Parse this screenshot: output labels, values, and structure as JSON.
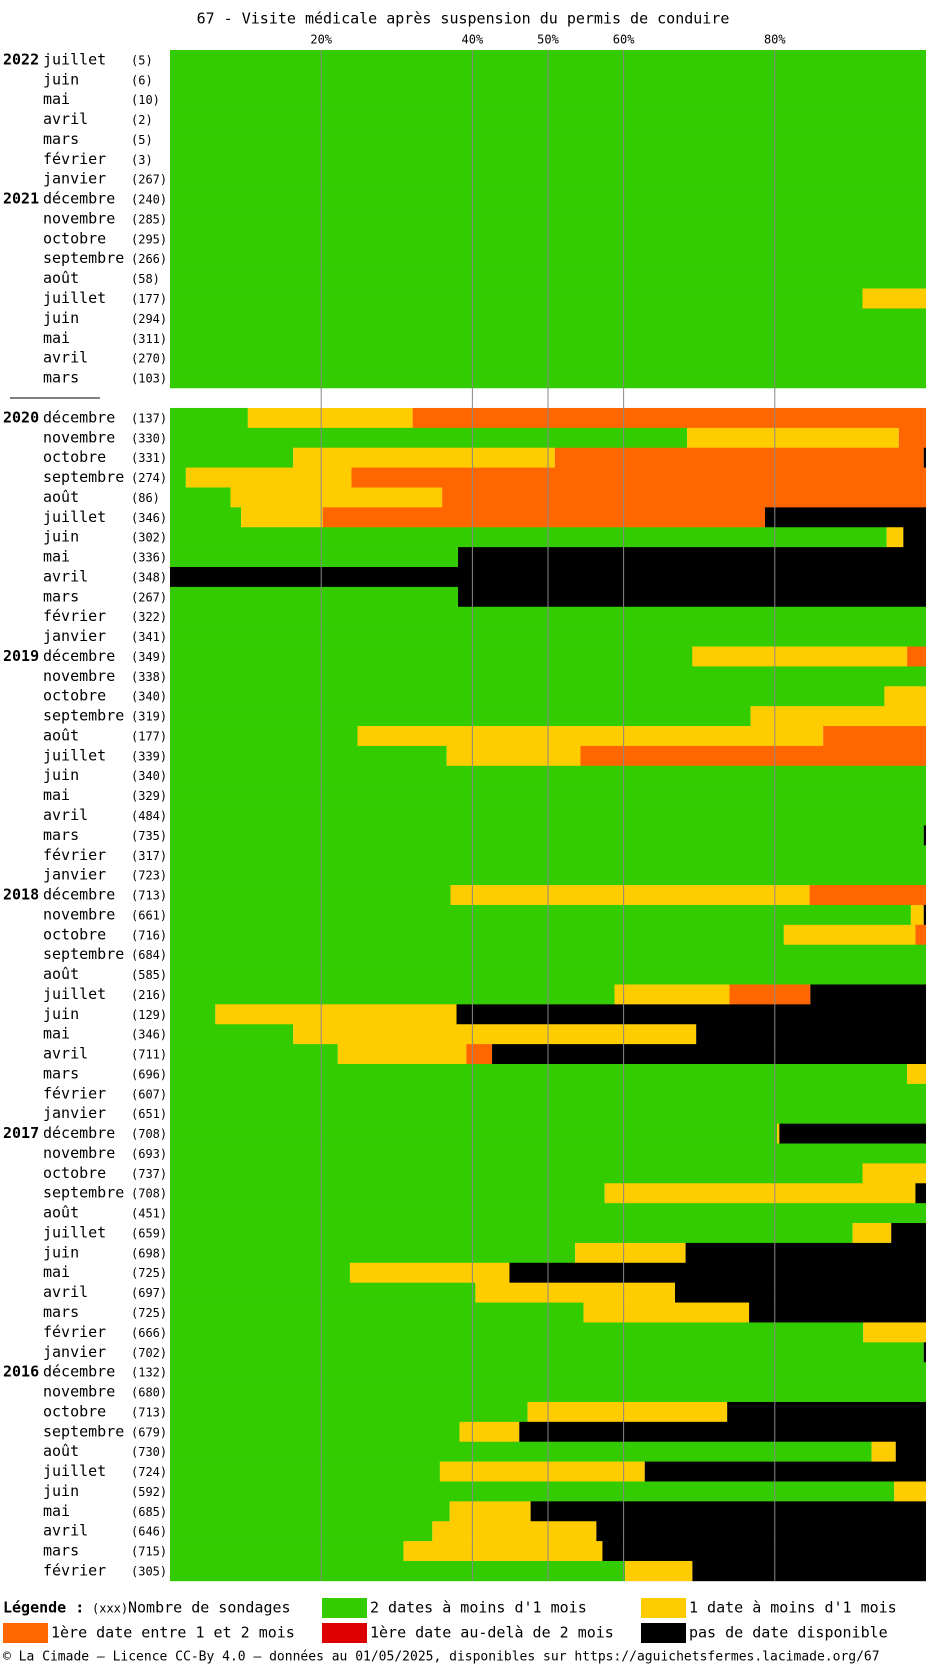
{
  "chart_data": {
    "type": "stacked-barh",
    "title": "67 - Visite médicale après suspension du permis de conduire",
    "xlim": [
      0,
      100
    ],
    "xticks": [
      {
        "value": 20,
        "label": "20%"
      },
      {
        "value": 40,
        "label": "40%"
      },
      {
        "value": 50,
        "label": "50%"
      },
      {
        "value": 60,
        "label": "60%"
      },
      {
        "value": 80,
        "label": "80%"
      }
    ],
    "grid": true,
    "years": [
      "2022",
      null,
      null,
      null,
      null,
      null,
      null,
      "2021",
      null,
      null,
      null,
      null,
      null,
      null,
      null,
      null,
      null,
      "2020",
      null,
      null,
      null,
      null,
      null,
      null,
      null,
      null,
      null,
      null,
      null,
      "2019",
      null,
      null,
      null,
      null,
      null,
      null,
      null,
      null,
      null,
      null,
      null,
      "2018",
      null,
      null,
      null,
      null,
      null,
      null,
      null,
      null,
      null,
      null,
      null,
      "2017",
      null,
      null,
      null,
      null,
      null,
      null,
      null,
      null,
      null,
      null,
      null,
      "2016",
      null,
      null,
      null,
      null,
      null,
      null,
      null,
      null,
      null,
      null
    ],
    "categories": [
      "juillet",
      "juin",
      "mai",
      "avril",
      "mars",
      "février",
      "janvier",
      "décembre",
      "novembre",
      "octobre",
      "septembre",
      "août",
      "juillet",
      "juin",
      "mai",
      "avril",
      "mars",
      "décembre",
      "novembre",
      "octobre",
      "septembre",
      "août",
      "juillet",
      "juin",
      "mai",
      "avril",
      "mars",
      "février",
      "janvier",
      "décembre",
      "novembre",
      "octobre",
      "septembre",
      "août",
      "juillet",
      "juin",
      "mai",
      "avril",
      "mars",
      "février",
      "janvier",
      "décembre",
      "novembre",
      "octobre",
      "septembre",
      "août",
      "juillet",
      "juin",
      "mai",
      "avril",
      "mars",
      "février",
      "janvier",
      "décembre",
      "novembre",
      "octobre",
      "septembre",
      "août",
      "juillet",
      "juin",
      "mai",
      "avril",
      "mars",
      "février",
      "janvier",
      "décembre",
      "novembre",
      "octobre",
      "septembre",
      "août",
      "juillet",
      "juin",
      "mai",
      "avril",
      "mars",
      "février"
    ],
    "sample_sizes": [
      "(5)",
      "(6)",
      "(10)",
      "(2)",
      "(5)",
      "(3)",
      "(267)",
      "(240)",
      "(285)",
      "(295)",
      "(266)",
      "(58)",
      "(177)",
      "(294)",
      "(311)",
      "(270)",
      "(103)",
      "(137)",
      "(330)",
      "(331)",
      "(274)",
      "(86)",
      "(346)",
      "(302)",
      "(336)",
      "(348)",
      "(267)",
      "(322)",
      "(341)",
      "(349)",
      "(338)",
      "(340)",
      "(319)",
      "(177)",
      "(339)",
      "(340)",
      "(329)",
      "(484)",
      "(735)",
      "(317)",
      "(723)",
      "(713)",
      "(661)",
      "(716)",
      "(684)",
      "(585)",
      "(216)",
      "(129)",
      "(346)",
      "(711)",
      "(696)",
      "(607)",
      "(651)",
      "(708)",
      "(693)",
      "(737)",
      "(708)",
      "(451)",
      "(659)",
      "(698)",
      "(725)",
      "(697)",
      "(725)",
      "(666)",
      "(702)",
      "(132)",
      "(680)",
      "(713)",
      "(679)",
      "(730)",
      "(724)",
      "(592)",
      "(685)",
      "(646)",
      "(715)",
      "(305)"
    ],
    "series": [
      {
        "name": "2 dates à moins d'1 mois",
        "color": "#33cc00",
        "values": [
          100,
          100,
          100,
          100,
          100,
          100,
          100,
          100,
          100,
          100,
          100,
          100,
          91.6,
          100,
          100,
          100,
          100,
          10.3,
          68.4,
          16.3,
          2.1,
          8,
          9.4,
          94.8,
          38.1,
          0,
          38.1,
          100,
          100,
          69.1,
          100,
          94.5,
          76.8,
          24.8,
          36.6,
          100,
          100,
          100,
          99.7,
          100,
          100,
          37.1,
          98,
          81.2,
          100,
          100,
          58.8,
          6,
          16.3,
          22.2,
          97.5,
          100,
          100,
          80.3,
          100,
          91.6,
          57.5,
          100,
          90.3,
          53.6,
          23.8,
          40.4,
          54.7,
          91.7,
          99.7,
          100,
          100,
          47.3,
          38.3,
          92.8,
          35.7,
          95.8,
          37,
          34.7,
          30.9,
          60.2
        ]
      },
      {
        "name": "1 date à moins d'1 mois",
        "color": "#ffcc00",
        "values": [
          0,
          0,
          0,
          0,
          0,
          0,
          0,
          0,
          0,
          0,
          0,
          0,
          8.4,
          0,
          0,
          0,
          0,
          21.8,
          28,
          34.6,
          21.9,
          28,
          10.8,
          2.2,
          0,
          0,
          0,
          0,
          0,
          28.4,
          0,
          5.5,
          23.2,
          61.6,
          17.7,
          0,
          0,
          0,
          0,
          0,
          0,
          47.5,
          1.7,
          17.4,
          0,
          0,
          15.2,
          31.9,
          53.3,
          17,
          2.5,
          0,
          0,
          0.3,
          0,
          8.4,
          41.1,
          0,
          5.1,
          14.6,
          21.1,
          26.4,
          21.9,
          8.3,
          0,
          0,
          0,
          26.4,
          7.9,
          3.2,
          27.1,
          4.2,
          10.7,
          21.7,
          26.3,
          8.9
        ]
      },
      {
        "name": "1ère date entre 1 et 2 mois",
        "color": "#ff6600",
        "values": [
          0,
          0,
          0,
          0,
          0,
          0,
          0,
          0,
          0,
          0,
          0,
          0,
          0,
          0,
          0,
          0,
          0,
          67.9,
          3.6,
          48.8,
          76,
          64,
          58.5,
          0,
          0,
          0,
          0,
          0,
          0,
          2.5,
          0,
          0,
          0,
          13.6,
          45.7,
          0,
          0,
          0,
          0,
          0,
          0,
          15.4,
          0,
          1.4,
          0,
          0,
          10.7,
          0,
          0,
          3.4,
          0,
          0,
          0,
          0,
          0,
          0,
          0,
          0,
          0,
          0,
          0,
          0,
          0,
          0,
          0,
          0,
          0,
          0,
          0,
          0,
          0,
          0,
          0,
          0,
          0,
          0
        ]
      },
      {
        "name": "1ère date au-delà de 2 mois",
        "color": "#dd0000",
        "values": [
          0,
          0,
          0,
          0,
          0,
          0,
          0,
          0,
          0,
          0,
          0,
          0,
          0,
          0,
          0,
          0,
          0,
          0,
          0,
          0,
          0,
          0,
          0,
          0,
          0,
          0,
          0,
          0,
          0,
          0,
          0,
          0,
          0,
          0,
          0,
          0,
          0,
          0,
          0,
          0,
          0,
          0,
          0,
          0,
          0,
          0,
          0,
          0,
          0,
          0,
          0,
          0,
          0,
          0,
          0,
          0,
          0,
          0,
          0,
          0,
          0,
          0,
          0,
          0,
          0,
          0,
          0,
          0,
          0,
          0,
          0,
          0,
          0,
          0,
          0,
          0
        ]
      },
      {
        "name": "pas de date disponible",
        "color": "#000000",
        "values": [
          0,
          0,
          0,
          0,
          0,
          0,
          0,
          0,
          0,
          0,
          0,
          0,
          0,
          0,
          0,
          0,
          0,
          0,
          0,
          0.3,
          0,
          0,
          21.3,
          3,
          61.9,
          100,
          61.9,
          0,
          0,
          0,
          0,
          0,
          0,
          0,
          0,
          0,
          0,
          0,
          0.3,
          0,
          0,
          0,
          0.3,
          0,
          0,
          0,
          15.3,
          62.1,
          30.4,
          57.4,
          0,
          0,
          0,
          19.4,
          0,
          0,
          1.4,
          0,
          4.6,
          31.8,
          55.1,
          33.2,
          23.4,
          0,
          0.3,
          0,
          0,
          26.3,
          53.8,
          4,
          37.2,
          0,
          52.3,
          43.6,
          42.8,
          30.9
        ]
      }
    ],
    "legend_title": "Légende :",
    "sample_size_note": "(xxx)",
    "sample_size_label": "Nombre de sondages",
    "footer": "© La Cimade — Licence CC-By 4.0 — données au 01/05/2025, disponibles sur https://aguichetsfermes.lacimade.org/67"
  }
}
